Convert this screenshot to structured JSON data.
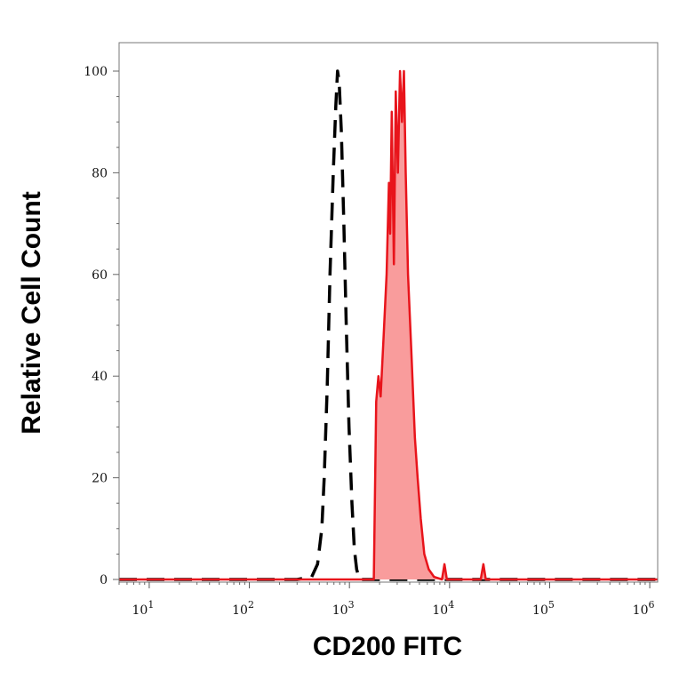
{
  "chart_data": {
    "type": "area",
    "xlabel": "CD200 FITC",
    "ylabel": "Relative Cell Count",
    "x_scale": "log",
    "xlim": [
      5,
      1200000
    ],
    "ylim": [
      0,
      100
    ],
    "x_ticks": [
      {
        "base": "10",
        "exp": "1",
        "value": 10
      },
      {
        "base": "10",
        "exp": "2",
        "value": 100
      },
      {
        "base": "10",
        "exp": "3",
        "value": 1000
      },
      {
        "base": "10",
        "exp": "4",
        "value": 10000
      },
      {
        "base": "10",
        "exp": "5",
        "value": 100000
      },
      {
        "base": "10",
        "exp": "6",
        "value": 1000000
      }
    ],
    "y_ticks": [
      {
        "label": "0",
        "value": 0
      },
      {
        "label": "20",
        "value": 20
      },
      {
        "label": "40",
        "value": 40
      },
      {
        "label": "60",
        "value": 60
      },
      {
        "label": "80",
        "value": 80
      },
      {
        "label": "100",
        "value": 100
      }
    ],
    "grid": false,
    "series": [
      {
        "style": "dashed-outline",
        "color": "#000000",
        "points": [
          [
            5,
            0
          ],
          [
            300,
            0
          ],
          [
            420,
            0.5
          ],
          [
            480,
            3
          ],
          [
            530,
            10
          ],
          [
            560,
            20
          ],
          [
            600,
            38
          ],
          [
            640,
            60
          ],
          [
            690,
            80
          ],
          [
            730,
            93
          ],
          [
            760,
            100
          ],
          [
            790,
            98
          ],
          [
            830,
            88
          ],
          [
            880,
            70
          ],
          [
            930,
            50
          ],
          [
            990,
            30
          ],
          [
            1060,
            15
          ],
          [
            1120,
            6
          ],
          [
            1180,
            2
          ],
          [
            1260,
            0
          ],
          [
            1200000,
            0
          ]
        ]
      },
      {
        "style": "filled",
        "color": "#e8141b",
        "fill": "#f99c9c",
        "points": [
          [
            5,
            0
          ],
          [
            1750,
            0
          ],
          [
            1850,
            35
          ],
          [
            1950,
            40
          ],
          [
            2050,
            36
          ],
          [
            2200,
            48
          ],
          [
            2350,
            60
          ],
          [
            2480,
            78
          ],
          [
            2550,
            68
          ],
          [
            2650,
            92
          ],
          [
            2780,
            62
          ],
          [
            2900,
            96
          ],
          [
            3050,
            80
          ],
          [
            3200,
            100
          ],
          [
            3350,
            90
          ],
          [
            3500,
            100
          ],
          [
            3650,
            80
          ],
          [
            3850,
            60
          ],
          [
            4150,
            45
          ],
          [
            4500,
            28
          ],
          [
            4800,
            20
          ],
          [
            5150,
            12
          ],
          [
            5600,
            5
          ],
          [
            6200,
            2
          ],
          [
            7000,
            0.5
          ],
          [
            8400,
            0
          ],
          [
            8900,
            3
          ],
          [
            9400,
            0
          ],
          [
            20500,
            0
          ],
          [
            21800,
            3
          ],
          [
            23000,
            0
          ],
          [
            1200000,
            0
          ]
        ]
      }
    ]
  }
}
